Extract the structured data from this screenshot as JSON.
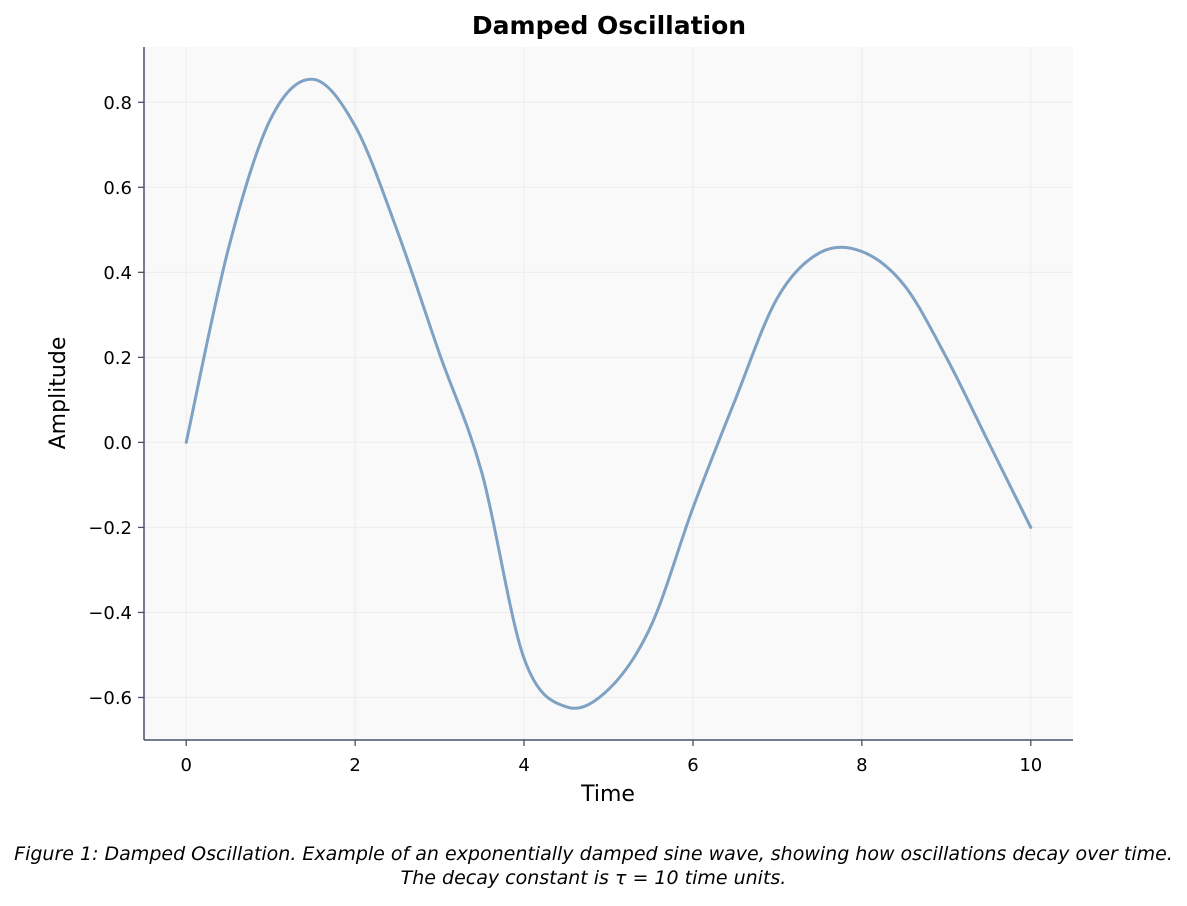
{
  "chart_data": {
    "type": "line",
    "title": "Damped Oscillation",
    "xlabel": "Time",
    "ylabel": "Amplitude",
    "xlim": [
      -0.5,
      10.5
    ],
    "ylim": [
      -0.7,
      0.93
    ],
    "xticks": [
      0,
      2,
      4,
      6,
      8,
      10
    ],
    "xtick_labels": [
      "0",
      "2",
      "4",
      "6",
      "8",
      "10"
    ],
    "yticks": [
      -0.6,
      -0.4,
      -0.2,
      0.0,
      0.2,
      0.4,
      0.6,
      0.8
    ],
    "ytick_labels": [
      "−0.6",
      "−0.4",
      "−0.2",
      "0.0",
      "0.2",
      "0.4",
      "0.6",
      "0.8"
    ],
    "grid": true,
    "legend": false,
    "series": [
      {
        "color": "#7ea1c4",
        "x": [
          0,
          0.5,
          1,
          1.5,
          2,
          2.5,
          3,
          3.5,
          4,
          4.5,
          5,
          5.5,
          6,
          6.5,
          7,
          7.5,
          8,
          8.5,
          9,
          9.5,
          10
        ],
        "y": [
          0.0,
          0.456,
          0.761,
          0.854,
          0.744,
          0.497,
          0.208,
          -0.071,
          -0.508,
          -0.622,
          -0.581,
          -0.433,
          -0.154,
          0.1,
          0.34,
          0.446,
          0.449,
          0.37,
          0.2,
          0.0,
          -0.2
        ]
      }
    ],
    "caption": "Figure 1: Damped Oscillation. Example of an exponentially damped sine wave, showing how oscillations decay over time. The decay constant is τ = 10 time units."
  }
}
